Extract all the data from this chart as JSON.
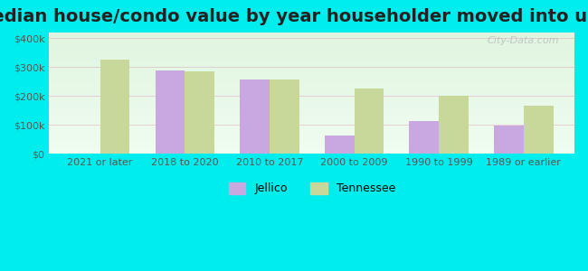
{
  "title": "Median house/condo value by year householder moved into unit",
  "categories": [
    "2021 or later",
    "2018 to 2020",
    "2010 to 2017",
    "2000 to 2009",
    "1990 to 1999",
    "1989 or earlier"
  ],
  "jellico_values": [
    null,
    290000,
    257000,
    63000,
    113000,
    97000
  ],
  "tennessee_values": [
    325000,
    287000,
    257000,
    227000,
    200000,
    168000
  ],
  "jellico_color": "#c9a8e0",
  "tennessee_color": "#c8d89a",
  "background_color": "#00eded",
  "title_fontsize": 14,
  "ylabel_ticks": [
    0,
    100000,
    200000,
    300000,
    400000
  ],
  "ylabel_labels": [
    "$0",
    "$100k",
    "$200k",
    "$300k",
    "$400k"
  ],
  "ylim": [
    0,
    420000
  ],
  "bar_width": 0.35,
  "legend_jellico": "Jellico",
  "legend_tennessee": "Tennessee",
  "watermark": "City-Data.com"
}
